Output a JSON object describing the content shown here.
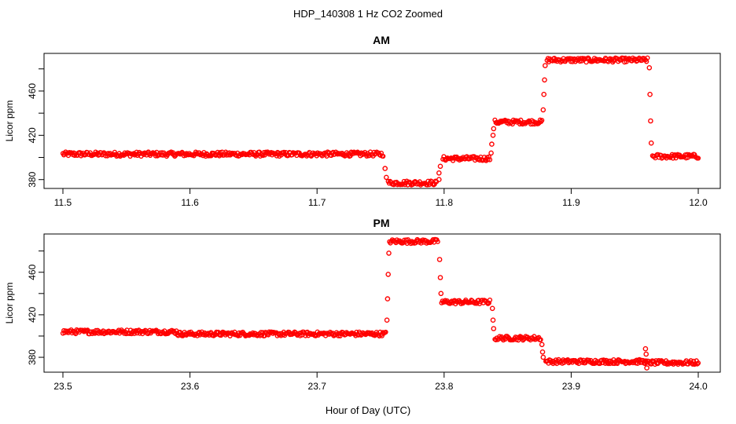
{
  "figure": {
    "title": "HDP_140308  1 Hz CO2 Zoomed",
    "xlabel": "Hour of Day (UTC)",
    "point_color": "#ff0000"
  },
  "chart_data": [
    {
      "type": "scatter",
      "title": "AM",
      "ylabel": "Licor ppm",
      "xlabel": "",
      "xlim": [
        11.5,
        12.0
      ],
      "ylim": [
        372,
        494
      ],
      "xticks": [
        "11.5",
        "11.6",
        "11.7",
        "11.8",
        "11.9",
        "12.0"
      ],
      "yticks": [
        "380",
        "420",
        "460"
      ],
      "segments": [
        {
          "x_start": 11.5,
          "x_end": 11.752,
          "y": 403
        },
        {
          "x_start": 11.756,
          "x_end": 11.794,
          "y": 377
        },
        {
          "x_start": 11.799,
          "x_end": 11.836,
          "y": 399
        },
        {
          "x_start": 11.84,
          "x_end": 11.877,
          "y": 432
        },
        {
          "x_start": 11.881,
          "x_end": 11.96,
          "y": 488
        },
        {
          "x_start": 11.964,
          "x_end": 12.0,
          "y": 401
        }
      ],
      "transitions": [
        {
          "x": 11.7535,
          "y": 390
        },
        {
          "x": 11.7545,
          "y": 382
        },
        {
          "x": 11.796,
          "y": 380
        },
        {
          "x": 11.796,
          "y": 386
        },
        {
          "x": 11.797,
          "y": 392
        },
        {
          "x": 11.837,
          "y": 404
        },
        {
          "x": 11.8375,
          "y": 412
        },
        {
          "x": 11.8385,
          "y": 420
        },
        {
          "x": 11.839,
          "y": 426
        },
        {
          "x": 11.878,
          "y": 443
        },
        {
          "x": 11.8785,
          "y": 457
        },
        {
          "x": 11.879,
          "y": 470
        },
        {
          "x": 11.8795,
          "y": 483
        },
        {
          "x": 11.9615,
          "y": 481
        },
        {
          "x": 11.962,
          "y": 457
        },
        {
          "x": 11.9625,
          "y": 433
        },
        {
          "x": 11.963,
          "y": 413
        }
      ]
    },
    {
      "type": "scatter",
      "title": "PM",
      "ylabel": "Licor ppm",
      "xlabel": "Hour of Day (UTC)",
      "xlim": [
        23.5,
        24.0
      ],
      "ylim": [
        366,
        496
      ],
      "xticks": [
        "23.5",
        "23.6",
        "23.7",
        "23.8",
        "23.9",
        "24.0"
      ],
      "yticks": [
        "380",
        "420",
        "460"
      ],
      "segments": [
        {
          "x_start": 23.5,
          "x_end": 23.59,
          "y": 404
        },
        {
          "x_start": 23.59,
          "x_end": 23.754,
          "y": 402
        },
        {
          "x_start": 23.757,
          "x_end": 23.795,
          "y": 489
        },
        {
          "x_start": 23.798,
          "x_end": 23.836,
          "y": 432
        },
        {
          "x_start": 23.84,
          "x_end": 23.876,
          "y": 398
        },
        {
          "x_start": 23.88,
          "x_end": 23.958,
          "y": 376
        },
        {
          "x_start": 23.958,
          "x_end": 24.0,
          "y": 375
        }
      ],
      "transitions": [
        {
          "x": 23.755,
          "y": 415
        },
        {
          "x": 23.7555,
          "y": 435
        },
        {
          "x": 23.756,
          "y": 458
        },
        {
          "x": 23.7565,
          "y": 478
        },
        {
          "x": 23.7965,
          "y": 472
        },
        {
          "x": 23.797,
          "y": 455
        },
        {
          "x": 23.7975,
          "y": 440
        },
        {
          "x": 23.838,
          "y": 426
        },
        {
          "x": 23.8385,
          "y": 415
        },
        {
          "x": 23.839,
          "y": 407
        },
        {
          "x": 23.877,
          "y": 392
        },
        {
          "x": 23.8775,
          "y": 385
        },
        {
          "x": 23.878,
          "y": 380
        },
        {
          "x": 23.9585,
          "y": 388
        },
        {
          "x": 23.959,
          "y": 383
        },
        {
          "x": 23.9595,
          "y": 370
        }
      ]
    }
  ]
}
